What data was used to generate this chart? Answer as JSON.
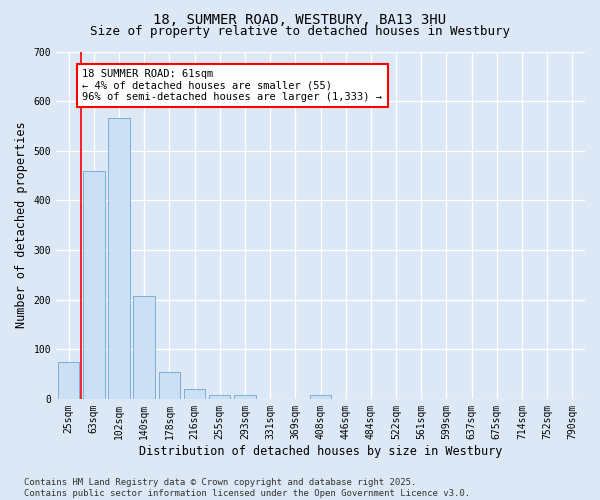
{
  "title_line1": "18, SUMMER ROAD, WESTBURY, BA13 3HU",
  "title_line2": "Size of property relative to detached houses in Westbury",
  "xlabel": "Distribution of detached houses by size in Westbury",
  "ylabel": "Number of detached properties",
  "categories": [
    "25sqm",
    "63sqm",
    "102sqm",
    "140sqm",
    "178sqm",
    "216sqm",
    "255sqm",
    "293sqm",
    "331sqm",
    "369sqm",
    "408sqm",
    "446sqm",
    "484sqm",
    "522sqm",
    "561sqm",
    "599sqm",
    "637sqm",
    "675sqm",
    "714sqm",
    "752sqm",
    "790sqm"
  ],
  "bar_heights": [
    75,
    460,
    565,
    207,
    55,
    20,
    8,
    8,
    0,
    0,
    7,
    0,
    0,
    0,
    0,
    0,
    0,
    0,
    0,
    0,
    0
  ],
  "bar_color": "#cce0f5",
  "bar_edge_color": "#7aafd4",
  "bar_width": 0.85,
  "annotation_text": "18 SUMMER ROAD: 61sqm\n← 4% of detached houses are smaller (55)\n96% of semi-detached houses are larger (1,333) →",
  "annotation_box_facecolor": "white",
  "annotation_box_edgecolor": "red",
  "ylim": [
    0,
    700
  ],
  "yticks": [
    0,
    100,
    200,
    300,
    400,
    500,
    600,
    700
  ],
  "footer_line1": "Contains HM Land Registry data © Crown copyright and database right 2025.",
  "footer_line2": "Contains public sector information licensed under the Open Government Licence v3.0.",
  "bg_color": "#dce8f5",
  "plot_bg_color": "#dce8f5",
  "grid_color": "white",
  "title_fontsize": 10,
  "subtitle_fontsize": 9,
  "axis_label_fontsize": 8.5,
  "tick_fontsize": 7,
  "annotation_fontsize": 7.5,
  "footer_fontsize": 6.5
}
